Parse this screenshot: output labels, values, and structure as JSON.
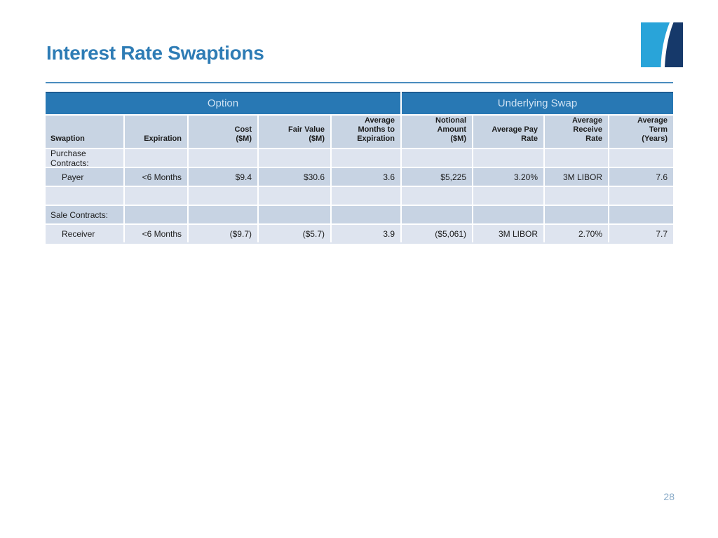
{
  "slide": {
    "title": "Interest Rate Swaptions",
    "page_number": "28"
  },
  "logo": {
    "name": "swoosh-square-logo",
    "light_color": "#29A4D9",
    "dark_color": "#16396A"
  },
  "colors": {
    "band_background": "#2878B4",
    "band_text": "#CEE2F3",
    "column_header_background": "#C8D4E3",
    "row_light": "#DEE4EF",
    "row_dark": "#C7D3E3",
    "title_text": "#2E7CB5",
    "rule": "#4A8CBE",
    "page_number_text": "#88AAC8"
  },
  "table": {
    "group_headers": [
      {
        "label": "Option",
        "span": 5
      },
      {
        "label": "Underlying Swap",
        "span": 4
      }
    ],
    "columns": [
      "Swaption",
      "Expiration",
      "Cost\n($M)",
      "Fair Value\n($M)",
      "Average\nMonths to\nExpiration",
      "Notional\nAmount\n($M)",
      "Average Pay\nRate",
      "Average\nReceive\nRate",
      "Average\nTerm\n(Years)"
    ],
    "rows": [
      {
        "band": "light",
        "indent": false,
        "cells": [
          "Purchase Contracts:",
          "",
          "",
          "",
          "",
          "",
          "",
          "",
          ""
        ]
      },
      {
        "band": "dark",
        "indent": true,
        "cells": [
          "Payer",
          "<6 Months",
          "$9.4",
          "$30.6",
          "3.6",
          "$5,225",
          "3.20%",
          "3M LIBOR",
          "7.6"
        ]
      },
      {
        "band": "light",
        "indent": false,
        "cells": [
          "",
          "",
          "",
          "",
          "",
          "",
          "",
          "",
          ""
        ]
      },
      {
        "band": "dark",
        "indent": false,
        "cells": [
          "Sale Contracts:",
          "",
          "",
          "",
          "",
          "",
          "",
          "",
          ""
        ]
      },
      {
        "band": "light",
        "indent": true,
        "cells": [
          "Receiver",
          "<6 Months",
          "($9.7)",
          "($5.7)",
          "3.9",
          "($5,061)",
          "3M LIBOR",
          "2.70%",
          "7.7"
        ]
      }
    ]
  }
}
